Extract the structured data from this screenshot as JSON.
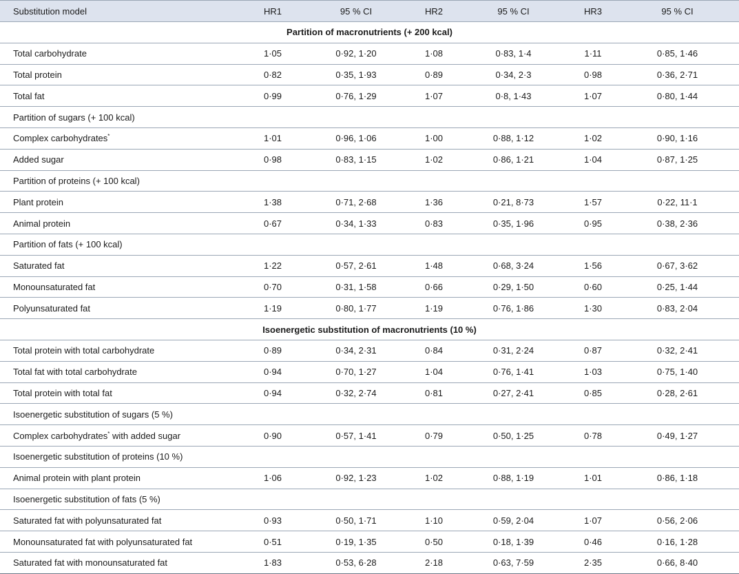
{
  "headers": [
    "Substitution model",
    "HR1",
    "95 % CI",
    "HR2",
    "95 % CI",
    "HR3",
    "95 % CI"
  ],
  "rows": [
    {
      "type": "section",
      "label": "Partition of macronutrients (+ 200 kcal)"
    },
    {
      "type": "data",
      "label": "Total carbohydrate",
      "values": [
        "1·05",
        "0·92, 1·20",
        "1·08",
        "0·83, 1·4",
        "1·11",
        "0·85, 1·46"
      ]
    },
    {
      "type": "data",
      "label": "Total protein",
      "values": [
        "0·82",
        "0·35, 1·93",
        "0·89",
        "0·34, 2·3",
        "0·98",
        "0·36, 2·71"
      ]
    },
    {
      "type": "data",
      "label": "Total fat",
      "values": [
        "0·99",
        "0·76, 1·29",
        "1·07",
        "0·8, 1·43",
        "1·07",
        "0·80, 1·44"
      ]
    },
    {
      "type": "sub",
      "label": "Partition of sugars (+ 100 kcal)"
    },
    {
      "type": "data",
      "label": "Complex carbohydrates",
      "sup": "*",
      "values": [
        "1·01",
        "0·96, 1·06",
        "1·00",
        "0·88, 1·12",
        "1·02",
        "0·90, 1·16"
      ]
    },
    {
      "type": "data",
      "label": "Added sugar",
      "values": [
        "0·98",
        "0·83, 1·15",
        "1·02",
        "0·86, 1·21",
        "1·04",
        "0·87, 1·25"
      ]
    },
    {
      "type": "sub",
      "label": "Partition of proteins (+ 100 kcal)"
    },
    {
      "type": "data",
      "label": "Plant protein",
      "values": [
        "1·38",
        "0·71, 2·68",
        "1·36",
        "0·21, 8·73",
        "1·57",
        "0·22, 11·1"
      ]
    },
    {
      "type": "data",
      "label": "Animal protein",
      "values": [
        "0·67",
        "0·34, 1·33",
        "0·83",
        "0·35, 1·96",
        "0·95",
        "0·38, 2·36"
      ]
    },
    {
      "type": "sub",
      "label": "Partition of fats (+ 100 kcal)"
    },
    {
      "type": "data",
      "label": "Saturated fat",
      "values": [
        "1·22",
        "0·57, 2·61",
        "1·48",
        "0·68, 3·24",
        "1·56",
        "0·67, 3·62"
      ]
    },
    {
      "type": "data",
      "label": "Monounsaturated fat",
      "values": [
        "0·70",
        "0·31, 1·58",
        "0·66",
        "0·29, 1·50",
        "0·60",
        "0·25, 1·44"
      ]
    },
    {
      "type": "data",
      "label": "Polyunsaturated fat",
      "values": [
        "1·19",
        "0·80, 1·77",
        "1·19",
        "0·76, 1·86",
        "1·30",
        "0·83, 2·04"
      ]
    },
    {
      "type": "section",
      "label": "Isoenergetic substitution of macronutrients (10 %)"
    },
    {
      "type": "data",
      "label": "Total protein with total carbohydrate",
      "values": [
        "0·89",
        "0·34, 2·31",
        "0·84",
        "0·31, 2·24",
        "0·87",
        "0·32, 2·41"
      ]
    },
    {
      "type": "data",
      "label": "Total fat with total carbohydrate",
      "values": [
        "0·94",
        "0·70, 1·27",
        "1·04",
        "0·76, 1·41",
        "1·03",
        "0·75, 1·40"
      ]
    },
    {
      "type": "data",
      "label": "Total protein with total fat",
      "values": [
        "0·94",
        "0·32, 2·74",
        "0·81",
        "0·27, 2·41",
        "0·85",
        "0·28, 2·61"
      ]
    },
    {
      "type": "sub",
      "label": "Isoenergetic substitution of sugars (5 %)"
    },
    {
      "type": "data",
      "label": "Complex carbohydrates",
      "sup": "*",
      "label_suffix": " with added sugar",
      "values": [
        "0·90",
        "0·57, 1·41",
        "0·79",
        "0·50, 1·25",
        "0·78",
        "0·49, 1·27"
      ]
    },
    {
      "type": "sub",
      "label": "Isoenergetic substitution of proteins (10 %)"
    },
    {
      "type": "data",
      "label": "Animal protein with plant protein",
      "values": [
        "1·06",
        "0·92, 1·23",
        "1·02",
        "0·88, 1·19",
        "1·01",
        "0·86, 1·18"
      ]
    },
    {
      "type": "sub",
      "label": "Isoenergetic substitution of fats (5 %)"
    },
    {
      "type": "data",
      "label": "Saturated fat with polyunsaturated fat",
      "values": [
        "0·93",
        "0·50, 1·71",
        "1·10",
        "0·59, 2·04",
        "1·07",
        "0·56, 2·06"
      ]
    },
    {
      "type": "data",
      "label": "Monounsaturated fat with polyunsaturated fat",
      "values": [
        "0·51",
        "0·19, 1·35",
        "0·50",
        "0·18, 1·39",
        "0·46",
        "0·16, 1·28"
      ]
    },
    {
      "type": "data",
      "label": "Saturated fat with monounsaturated fat",
      "values": [
        "1·83",
        "0·53, 6·28",
        "2·18",
        "0·63, 7·59",
        "2·35",
        "0·66, 8·40"
      ]
    }
  ]
}
